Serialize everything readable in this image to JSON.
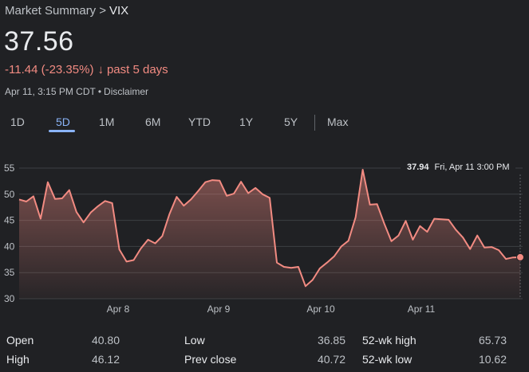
{
  "breadcrumb": {
    "parent": "Market Summary",
    "separator": ">",
    "current": "VIX"
  },
  "price": "37.56",
  "change": {
    "text": "-11.44 (-23.35%)",
    "arrow": "↓",
    "period": "past 5 days",
    "color": "#f28b82"
  },
  "meta": {
    "time": "Apr 11, 3:15 PM CDT",
    "dot": "•",
    "disclaimer": "Disclaimer"
  },
  "tabs": [
    {
      "label": "1D"
    },
    {
      "label": "5D",
      "active": true
    },
    {
      "label": "1M"
    },
    {
      "label": "6M"
    },
    {
      "label": "YTD"
    },
    {
      "label": "1Y"
    },
    {
      "label": "5Y"
    },
    {
      "label": "Max"
    }
  ],
  "tooltip": {
    "value": "37.94",
    "time": "Fri, Apr 11 3:00 PM"
  },
  "stats": {
    "open": {
      "label": "Open",
      "value": "40.80"
    },
    "high": {
      "label": "High",
      "value": "46.12"
    },
    "low": {
      "label": "Low",
      "value": "36.85"
    },
    "prev_close": {
      "label": "Prev close",
      "value": "40.72"
    },
    "wk52_high": {
      "label": "52-wk high",
      "value": "65.73"
    },
    "wk52_low": {
      "label": "52-wk low",
      "value": "10.62"
    }
  },
  "colors": {
    "line": "#f28b82",
    "accent": "#8ab4f8",
    "background": "#202124"
  },
  "chart_data": {
    "type": "area",
    "series": [
      {
        "values": [
          49,
          48.6,
          49.6,
          45.3,
          52.3,
          49.1,
          49.2,
          50.8,
          46.6,
          44.6,
          46.5,
          47.7,
          48.7,
          48.3,
          39.4,
          37.1,
          37.4,
          39.6,
          41.3,
          40.6,
          42,
          46.2,
          49.5,
          47.8,
          49,
          50.6,
          52.3,
          52.7,
          52.6,
          49.7,
          50.1,
          52.4,
          50.2,
          51.2,
          50,
          49.3,
          36.9,
          36.1,
          35.9,
          36.1,
          32.4,
          33.6,
          35.8,
          36.9,
          38.1,
          40,
          41.1,
          45.6,
          54.7,
          48,
          48.1,
          44.4,
          41,
          42.1,
          44.9,
          41.3,
          43.9,
          42.8,
          45.3,
          45.2,
          45.1,
          43.2,
          41.7,
          39.5,
          42.1,
          39.8,
          39.9,
          39.3,
          37.6,
          37.9,
          37.94
        ]
      }
    ],
    "x_labels": [
      "Apr 8",
      "Apr 9",
      "Apr 10",
      "Apr 11"
    ],
    "y_ticks": [
      30,
      35,
      40,
      45,
      50,
      55
    ],
    "ylim": [
      30,
      55
    ],
    "grid": true
  }
}
